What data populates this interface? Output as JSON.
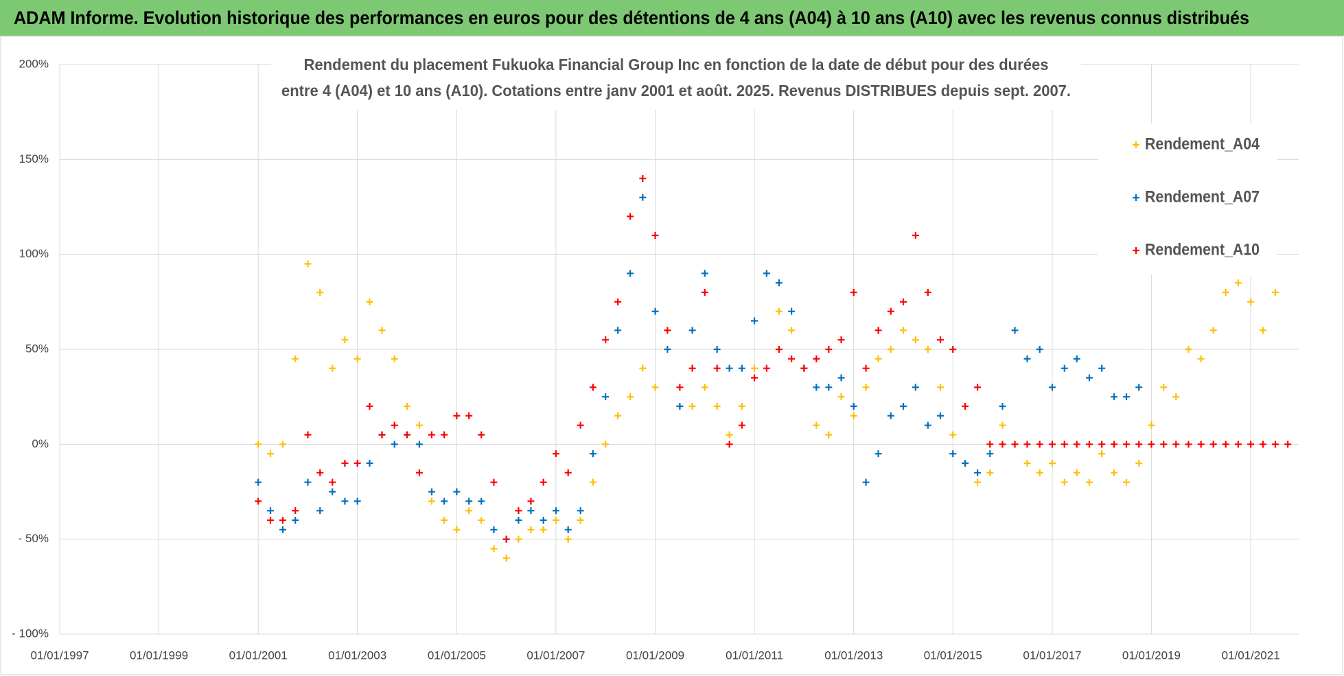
{
  "header": {
    "title": "ADAM Informe. Evolution historique des performances en euros pour des détentions de 4 ans (A04) à 10 ans (A10) avec les revenus connus distribués"
  },
  "chart_data": {
    "type": "scatter",
    "title": [
      "Rendement du placement Fukuoka Financial Group Inc en fonction de la date de début pour des durées",
      "entre 4 (A04) et 10 ans (A10).  Cotations entre janv 2001 et août. 2025. Revenus DISTRIBUES depuis sept. 2007."
    ],
    "x": [
      "2001-01-01",
      "2001-04-01",
      "2001-07-01",
      "2001-10-01",
      "2002-01-01",
      "2002-04-01",
      "2002-07-01",
      "2002-10-01",
      "2003-01-01",
      "2003-04-01",
      "2003-07-01",
      "2003-10-01",
      "2004-01-01",
      "2004-04-01",
      "2004-07-01",
      "2004-10-01",
      "2005-01-01",
      "2005-04-01",
      "2005-07-01",
      "2005-10-01",
      "2006-01-01",
      "2006-04-01",
      "2006-07-01",
      "2006-10-01",
      "2007-01-01",
      "2007-04-01",
      "2007-07-01",
      "2007-10-01",
      "2008-01-01",
      "2008-04-01",
      "2008-07-01",
      "2008-10-01",
      "2009-01-01",
      "2009-04-01",
      "2009-07-01",
      "2009-10-01",
      "2010-01-01",
      "2010-04-01",
      "2010-07-01",
      "2010-10-01",
      "2011-01-01",
      "2011-04-01",
      "2011-07-01",
      "2011-10-01",
      "2012-01-01",
      "2012-04-01",
      "2012-07-01",
      "2012-10-01",
      "2013-01-01",
      "2013-04-01",
      "2013-07-01",
      "2013-10-01",
      "2014-01-01",
      "2014-04-01",
      "2014-07-01",
      "2014-10-01",
      "2015-01-01",
      "2015-04-01",
      "2015-07-01",
      "2015-10-01",
      "2016-01-01",
      "2016-04-01",
      "2016-07-01",
      "2016-10-01",
      "2017-01-01",
      "2017-04-01",
      "2017-07-01",
      "2017-10-01",
      "2018-01-01",
      "2018-04-01",
      "2018-07-01",
      "2018-10-01",
      "2019-01-01",
      "2019-04-01",
      "2019-07-01",
      "2019-10-01",
      "2020-01-01",
      "2020-04-01",
      "2020-07-01",
      "2020-10-01",
      "2021-01-01",
      "2021-04-01",
      "2021-07-01",
      "2021-10-01"
    ],
    "series": [
      {
        "name": "Rendement_A04",
        "color": "#ffc000",
        "values": [
          0,
          -5,
          0,
          45,
          95,
          80,
          40,
          55,
          45,
          75,
          60,
          45,
          20,
          10,
          -30,
          -40,
          -45,
          -35,
          -40,
          -55,
          -60,
          -50,
          -45,
          -45,
          -40,
          -50,
          -40,
          -20,
          0,
          15,
          25,
          40,
          30,
          60,
          20,
          20,
          30,
          20,
          5,
          20,
          40,
          90,
          70,
          60,
          40,
          10,
          5,
          25,
          15,
          30,
          45,
          50,
          60,
          55,
          50,
          30,
          5,
          -10,
          -20,
          -15,
          10,
          0,
          -10,
          -15,
          -10,
          -20,
          -15,
          -20,
          -5,
          -15,
          -20,
          -10,
          10,
          30,
          25,
          50,
          45,
          60,
          80,
          85,
          75,
          60,
          80,
          null
        ]
      },
      {
        "name": "Rendement_A07",
        "color": "#0070c0",
        "values": [
          -20,
          -35,
          -45,
          -40,
          -20,
          -35,
          -25,
          -30,
          -30,
          -10,
          5,
          0,
          5,
          0,
          -25,
          -30,
          -25,
          -30,
          -30,
          -45,
          -50,
          -40,
          -35,
          -40,
          -35,
          -45,
          -35,
          -5,
          25,
          60,
          90,
          130,
          70,
          50,
          20,
          60,
          90,
          50,
          40,
          40,
          65,
          90,
          85,
          70,
          40,
          30,
          30,
          35,
          20,
          -20,
          -5,
          15,
          20,
          30,
          10,
          15,
          -5,
          -10,
          -15,
          -5,
          20,
          60,
          45,
          50,
          30,
          40,
          45,
          35,
          40,
          25,
          25,
          30,
          null,
          null,
          null,
          null,
          null,
          null,
          null,
          null,
          null,
          null,
          null,
          null
        ]
      },
      {
        "name": "Rendement_A10",
        "color": "#ff0000",
        "values": [
          -30,
          -40,
          -40,
          -35,
          5,
          -15,
          -20,
          -10,
          -10,
          20,
          5,
          10,
          5,
          -15,
          5,
          5,
          15,
          15,
          5,
          -20,
          -50,
          -35,
          -30,
          -20,
          -5,
          -15,
          10,
          30,
          55,
          75,
          120,
          140,
          110,
          60,
          30,
          40,
          80,
          40,
          0,
          10,
          35,
          40,
          50,
          45,
          40,
          45,
          50,
          55,
          80,
          40,
          60,
          70,
          75,
          110,
          80,
          55,
          50,
          20,
          30,
          0,
          0,
          0,
          0,
          0,
          0,
          0,
          0,
          0,
          0,
          0,
          0,
          0,
          0,
          0,
          0,
          0,
          0,
          0,
          0,
          0,
          0,
          0,
          0,
          0
        ]
      }
    ],
    "xlim": [
      "1997-01-01",
      "2021-12-20"
    ],
    "xticks": [
      {
        "value": "1997-01-01",
        "label": "01/01/1997"
      },
      {
        "value": "1999-01-01",
        "label": "01/01/1999"
      },
      {
        "value": "2001-01-01",
        "label": "01/01/2001"
      },
      {
        "value": "2003-01-01",
        "label": "01/01/2003"
      },
      {
        "value": "2005-01-01",
        "label": "01/01/2005"
      },
      {
        "value": "2007-01-01",
        "label": "01/01/2007"
      },
      {
        "value": "2009-01-01",
        "label": "01/01/2009"
      },
      {
        "value": "2011-01-01",
        "label": "01/01/2011"
      },
      {
        "value": "2013-01-01",
        "label": "01/01/2013"
      },
      {
        "value": "2015-01-01",
        "label": "01/01/2015"
      },
      {
        "value": "2017-01-01",
        "label": "01/01/2017"
      },
      {
        "value": "2019-01-01",
        "label": "01/01/2019"
      },
      {
        "value": "2021-01-01",
        "label": "01/01/2021"
      }
    ],
    "ylim": [
      -100,
      200
    ],
    "yticks": [
      {
        "value": -100,
        "label": "- 100%"
      },
      {
        "value": -50,
        "label": "- 50%"
      },
      {
        "value": 0,
        "label": "0%"
      },
      {
        "value": 50,
        "label": "50%"
      },
      {
        "value": 100,
        "label": "100%"
      },
      {
        "value": 150,
        "label": "150%"
      },
      {
        "value": 200,
        "label": "200%"
      }
    ],
    "grid": true,
    "legend": "top-right"
  }
}
